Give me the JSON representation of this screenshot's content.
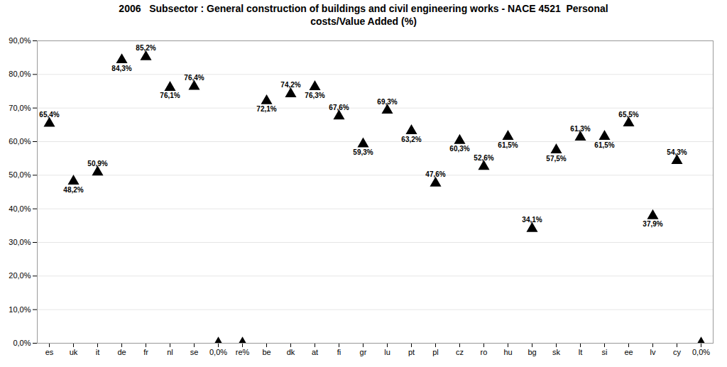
{
  "chart_data": {
    "type": "scatter",
    "title": "2006   Subsector : General construction of buildings and civil engineering works - NACE 4521  Personal\ncosts/Value Added (%)",
    "categories": [
      "es",
      "uk",
      "it",
      "de",
      "fr",
      "nl",
      "se",
      "0,0%",
      "re%",
      "be",
      "dk",
      "at",
      "fi",
      "gr",
      "lu",
      "pt",
      "pl",
      "cz",
      "ro",
      "hu",
      "bg",
      "sk",
      "lt",
      "si",
      "ee",
      "lv",
      "cy",
      "0,0%"
    ],
    "values": [
      65.4,
      48.2,
      50.9,
      84.3,
      85.2,
      76.1,
      76.4,
      0.0,
      0.0,
      72.1,
      74.2,
      76.3,
      67.6,
      59.3,
      69.3,
      63.2,
      47.6,
      60.3,
      52.6,
      61.5,
      34.1,
      57.5,
      61.3,
      61.5,
      65.5,
      37.9,
      54.3,
      0.0
    ],
    "value_labels": [
      "65,4%",
      "48,2%",
      "50,9%",
      "84,3%",
      "85,2%",
      "76,1%",
      "76,4%",
      null,
      null,
      "72,1%",
      "74,2%",
      "76,3%",
      "67,6%",
      "59,3%",
      "69,3%",
      "63,2%",
      "47,6%",
      "60,3%",
      "52,6%",
      "61,5%",
      "34,1%",
      "57,5%",
      "61,3%",
      "61,5%",
      "65,5%",
      "37,9%",
      "54,3%",
      null
    ],
    "data_labels": true,
    "marker": "triangle",
    "ylim": [
      0,
      90
    ],
    "yticks": [
      {
        "value": 0,
        "label": "0,0%"
      },
      {
        "value": 10,
        "label": "10,0%"
      },
      {
        "value": 20,
        "label": "20,0%"
      },
      {
        "value": 30,
        "label": "30,0%"
      },
      {
        "value": 40,
        "label": "40,0%"
      },
      {
        "value": 50,
        "label": "50,0%"
      },
      {
        "value": 60,
        "label": "60,0%"
      },
      {
        "value": 70,
        "label": "70,0%"
      },
      {
        "value": 80,
        "label": "80,0%"
      },
      {
        "value": 90,
        "label": "90,0%"
      }
    ],
    "grid": true
  }
}
